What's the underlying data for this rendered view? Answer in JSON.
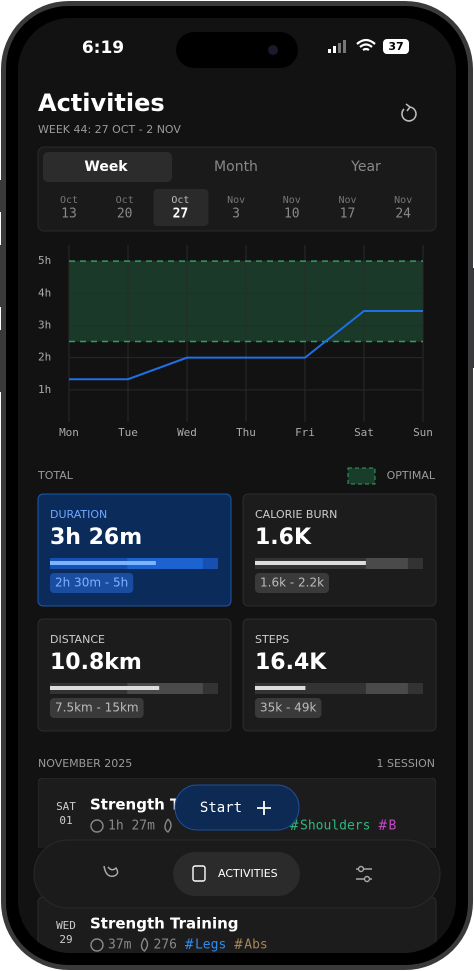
{
  "status_bar": {
    "time": "6:19",
    "battery": "37"
  },
  "header": {
    "title": "Activities",
    "subtitle": "WEEK 44: 27 OCT - 2 NOV"
  },
  "tabs": {
    "items": [
      "Week",
      "Month",
      "Year"
    ],
    "active": 0
  },
  "weeks": {
    "items": [
      {
        "month": "Oct",
        "day": "13"
      },
      {
        "month": "Oct",
        "day": "20"
      },
      {
        "month": "Oct",
        "day": "27"
      },
      {
        "month": "Nov",
        "day": "3"
      },
      {
        "month": "Nov",
        "day": "10"
      },
      {
        "month": "Nov",
        "day": "17"
      },
      {
        "month": "Nov",
        "day": "24"
      }
    ],
    "active": 2
  },
  "chart_data": {
    "type": "line",
    "categories": [
      "Mon",
      "Tue",
      "Wed",
      "Thu",
      "Fri",
      "Sat",
      "Sun"
    ],
    "values": [
      1.33,
      1.33,
      2,
      2,
      2,
      3.45,
      3.45
    ],
    "color": "#1f6fe6",
    "ylim": [
      0,
      5.5
    ],
    "yticks": [
      {
        "value": 1,
        "label": "1h"
      },
      {
        "value": 2,
        "label": "2h"
      },
      {
        "value": 3,
        "label": "3h"
      },
      {
        "value": 4,
        "label": "4h"
      },
      {
        "value": 5,
        "label": "5h"
      }
    ],
    "optimal_range": [
      2.5,
      5
    ],
    "optimal_color": "#2f9e63",
    "grid": true
  },
  "totals": {
    "label": "TOTAL",
    "legend": "OPTIMAL"
  },
  "stats": [
    {
      "label": "DURATION",
      "value": "3h 26m",
      "range": "2h 30m - 5h",
      "progress": 0.63,
      "range_band": [
        0.46,
        0.91
      ],
      "highlight": true
    },
    {
      "label": "CALORIE BURN",
      "value": "1.6K",
      "range": "1.6k - 2.2k",
      "progress": 0.66,
      "range_band": [
        0.66,
        0.91
      ],
      "highlight": false
    },
    {
      "label": "DISTANCE",
      "value": "10.8km",
      "range": "7.5km - 15km",
      "progress": 0.65,
      "range_band": [
        0.46,
        0.91
      ],
      "highlight": false
    },
    {
      "label": "STEPS",
      "value": "16.4K",
      "range": "35k - 49k",
      "progress": 0.3,
      "range_band": [
        0.66,
        0.91
      ],
      "highlight": false
    }
  ],
  "section": {
    "title": "NOVEMBER 2025",
    "count": "1 SESSION"
  },
  "sessions": [
    {
      "weekday": "SAT",
      "day": "01",
      "title": "Strength Training",
      "duration": "1h 27m",
      "calories": null,
      "tags": [
        {
          "name": "Shoulders",
          "color": "#2fb67c"
        },
        {
          "name": "B",
          "color": "#c048c0"
        }
      ]
    },
    {
      "weekday": "WED",
      "day": "29",
      "title": "Strength Training",
      "duration": "37m",
      "calories": "276",
      "tags": [
        {
          "name": "Legs",
          "color": "#2d8cf0"
        },
        {
          "name": "Abs",
          "color": "#a5845a"
        }
      ]
    }
  ],
  "fab": {
    "label": "Start"
  },
  "nav": {
    "active_label": "ACTIVITIES"
  }
}
